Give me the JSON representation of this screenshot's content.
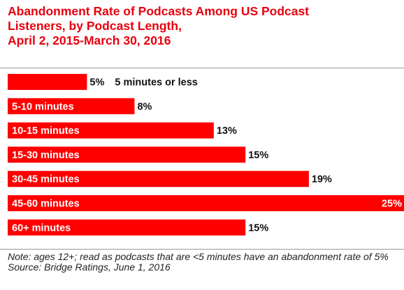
{
  "title": "Abandonment Rate of Podcasts Among US Podcast\nListeners, by Podcast Length,\nApril 2, 2015-March 30, 2016",
  "colors": {
    "accent": "#e8000d",
    "bar": "#ff0000",
    "text": "#111111"
  },
  "chart_data": {
    "type": "bar",
    "orientation": "horizontal",
    "categories": [
      "5 minutes or less",
      "5-10 minutes",
      "10-15 minutes",
      "15-30 minutes",
      "30-45 minutes",
      "45-60 minutes",
      "60+ minutes"
    ],
    "values": [
      5,
      8,
      13,
      15,
      19,
      25,
      15
    ],
    "value_labels": [
      "5%",
      "8%",
      "13%",
      "15%",
      "19%",
      "25%",
      "15%"
    ],
    "xlim": [
      0,
      25
    ],
    "grid": false,
    "legend": "none"
  },
  "note": "Note: ages 12+; read as podcasts that are <5 minutes have an abandonment rate of 5%",
  "source": "Source: Bridge Ratings, June 1, 2016"
}
